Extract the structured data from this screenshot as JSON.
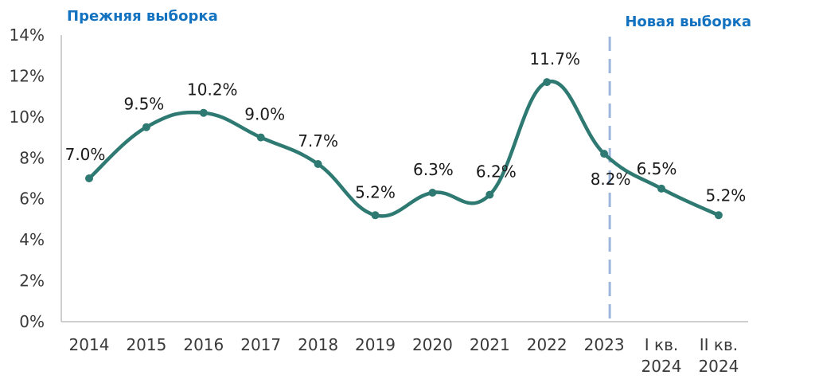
{
  "chart_data": {
    "type": "line",
    "categories": [
      [
        "2014"
      ],
      [
        "2015"
      ],
      [
        "2016"
      ],
      [
        "2017"
      ],
      [
        "2018"
      ],
      [
        "2019"
      ],
      [
        "2020"
      ],
      [
        "2021"
      ],
      [
        "2022"
      ],
      [
        "2023"
      ],
      [
        "I кв.",
        "2024"
      ],
      [
        "II кв.",
        "2024"
      ]
    ],
    "series": [
      {
        "values": [
          7.0,
          9.5,
          10.2,
          9.0,
          7.7,
          5.2,
          6.3,
          6.2,
          11.7,
          8.2,
          6.5,
          5.2
        ],
        "data_labels": [
          "7.0%",
          "9.5%",
          "10.2%",
          "9.0%",
          "7.7%",
          "5.2%",
          "6.3%",
          "6.2%",
          "11.7%",
          "8.2%",
          "6.5%",
          "5.2%"
        ],
        "color": "#2e7a72"
      }
    ],
    "ylim": [
      0,
      14
    ],
    "yticks": [
      0,
      2,
      4,
      6,
      8,
      10,
      12,
      14
    ],
    "ytick_labels": [
      "0%",
      "2%",
      "4%",
      "6%",
      "8%",
      "10%",
      "12%",
      "14%"
    ],
    "annotations": {
      "left_caption": "Прежняя выборка",
      "right_caption": "Новая выборка",
      "divider_after_category": "2023",
      "divider_color": "#9db6dc"
    },
    "grid": false,
    "legend": "none"
  }
}
